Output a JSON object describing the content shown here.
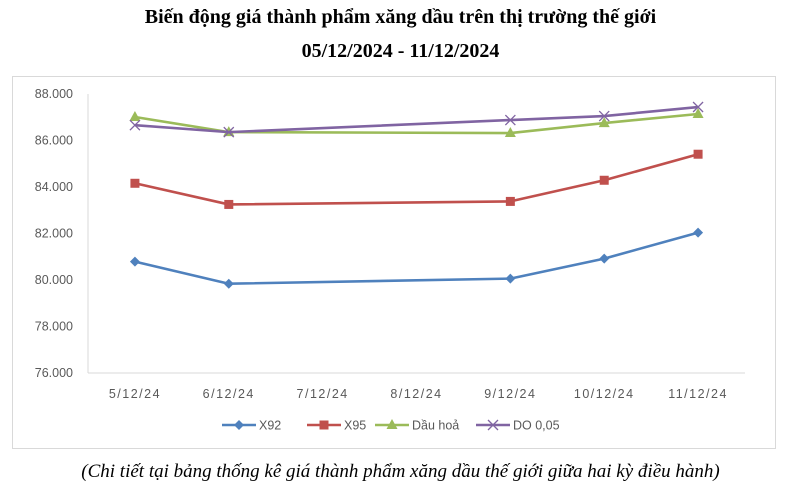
{
  "chart_data": {
    "type": "line",
    "title": "Biến động giá thành phẩm xăng dầu trên thị trường thế giới",
    "subtitle": "05/12/2024 - 11/12/2024",
    "xlabel": "",
    "ylabel": "",
    "categories": [
      "5/12/24",
      "6/12/24",
      "7/12/24",
      "8/12/24",
      "9/12/24",
      "10/12/24",
      "11/12/24"
    ],
    "ylim": [
      76000,
      88000
    ],
    "yticks": [
      76000,
      78000,
      80000,
      82000,
      84000,
      86000,
      88000
    ],
    "ytick_labels": [
      "76.000",
      "78.000",
      "80.000",
      "82.000",
      "84.000",
      "86.000",
      "88.000"
    ],
    "grid": false,
    "legend_position": "bottom",
    "series": [
      {
        "name": "X92",
        "color": "#4f81bd",
        "marker": "diamond",
        "values": [
          80790,
          79840,
          null,
          null,
          80060,
          80920,
          82040
        ]
      },
      {
        "name": "X95",
        "color": "#c0504d",
        "marker": "square",
        "values": [
          84160,
          83250,
          null,
          null,
          83380,
          84290,
          85410
        ]
      },
      {
        "name": "Dầu hoả",
        "color": "#9bbb59",
        "marker": "triangle",
        "values": [
          87010,
          86360,
          null,
          null,
          86320,
          86750,
          87140
        ]
      },
      {
        "name": "DO 0,05",
        "color": "#8064a2",
        "marker": "x",
        "values": [
          86660,
          86360,
          null,
          null,
          86880,
          87050,
          87440
        ]
      }
    ]
  },
  "caption": "(Chi tiết tại bảng thống kê giá thành phẩm xăng dầu thế giới giữa hai kỳ điều hành)"
}
